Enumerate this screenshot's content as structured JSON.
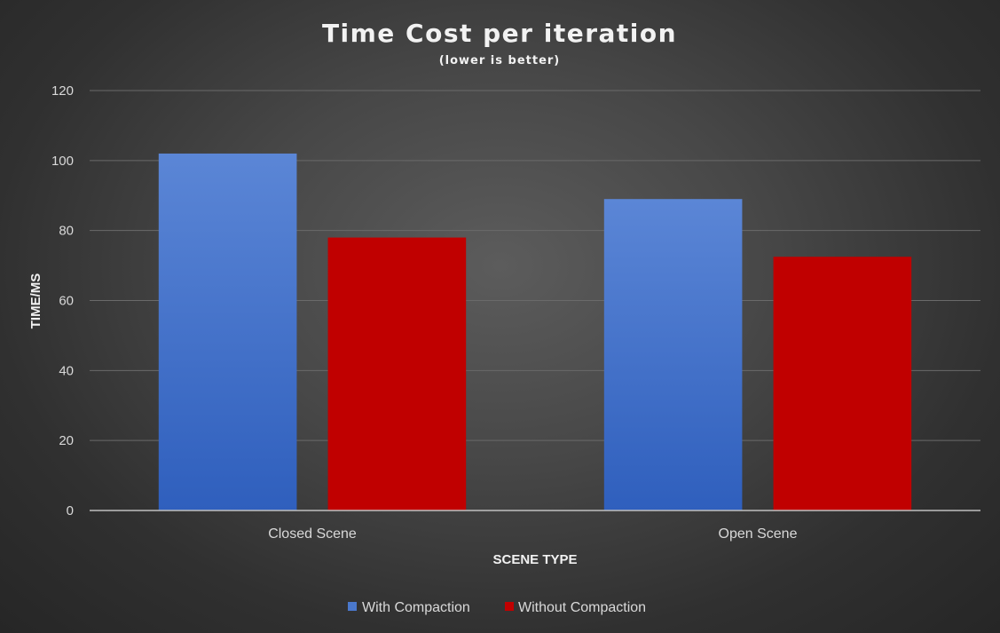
{
  "chart_data": {
    "type": "bar",
    "title": "Time Cost per iteration",
    "subtitle": "(lower is better)",
    "xlabel": "SCENE TYPE",
    "ylabel": "TIME/MS",
    "categories": [
      "Closed Scene",
      "Open Scene"
    ],
    "series": [
      {
        "name": "With Compaction",
        "values": [
          102,
          89
        ],
        "color": "#4472c4"
      },
      {
        "name": "Without Compaction",
        "values": [
          78,
          72.5
        ],
        "color": "#c00000"
      }
    ],
    "ylim": [
      0,
      120
    ],
    "yticks": [
      0,
      20,
      40,
      60,
      80,
      100,
      120
    ],
    "grid": true,
    "legend": "bottom"
  }
}
